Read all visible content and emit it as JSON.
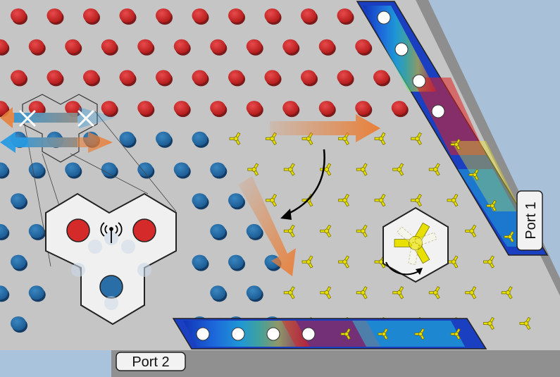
{
  "ports": [
    {
      "label": "Port 1"
    },
    {
      "label": "Port 2"
    }
  ],
  "colors": {
    "background": "#aac3dc",
    "plate": "#c6c6c6",
    "rod_red": "#d42a2a",
    "rod_blue": "#2a6ea8",
    "tripod_yellow": "#e8e000",
    "arrow_orange": "#e8803a",
    "arrow_blue": "#2a9be0",
    "field_low": "#1438c8",
    "field_high": "#e01010"
  },
  "icons": {
    "cross_marker": "cross-icon",
    "antenna": "antenna-icon",
    "rotation": "rotation-arrow-icon"
  }
}
